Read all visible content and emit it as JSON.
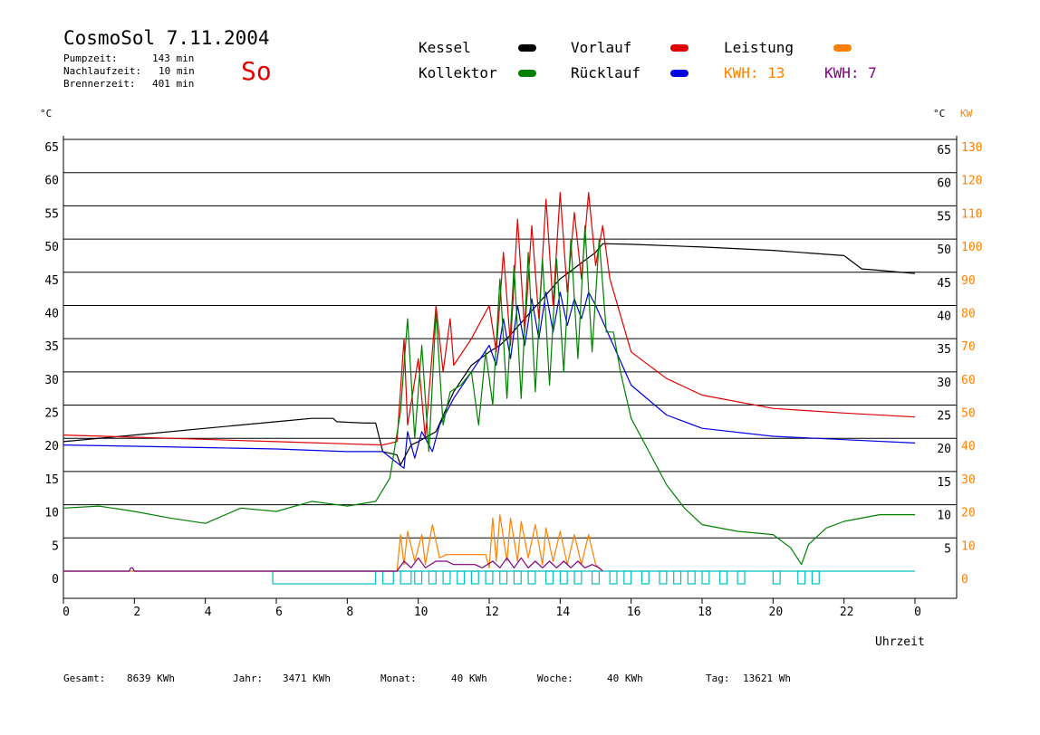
{
  "header": {
    "title": "CosmoSol 7.11.2004",
    "day": "So",
    "stats": [
      {
        "label": "Pumpzeit:",
        "value": "143 min"
      },
      {
        "label": "Nachlaufzeit:",
        "value": "10 min"
      },
      {
        "label": "Brennerzeit:",
        "value": "401 min"
      }
    ]
  },
  "legend": {
    "items": [
      {
        "label": "Kessel",
        "color": "#000000"
      },
      {
        "label": "Vorlauf",
        "color": "#e00000"
      },
      {
        "label": "Leistung",
        "color": "#ff8000"
      },
      {
        "label": "Kollektor",
        "color": "#008000"
      },
      {
        "label": "Rücklauf",
        "color": "#0000e0"
      }
    ],
    "kwh_orange": "KWH: 13",
    "kwh_purple": "KWH: 7"
  },
  "colors": {
    "kessel": "#000000",
    "vorlauf": "#e00000",
    "ruecklauf": "#0000e0",
    "kollektor": "#008000",
    "leistung": "#ff8000",
    "purple": "#800080",
    "pump": "#00c0c0",
    "kw_axis": "#ff8000"
  },
  "footer": [
    {
      "label": "Gesamt:",
      "value": "8639 KWh"
    },
    {
      "label": "Jahr:",
      "value": "3471 KWh"
    },
    {
      "label": "Monat:",
      "value": "40 KWh"
    },
    {
      "label": "Woche:",
      "value": "40 KWh"
    },
    {
      "label": "Tag:",
      "value": "13621 Wh"
    }
  ],
  "chart_data": {
    "type": "line",
    "xlabel": "Uhrzeit",
    "ylabel_left": "°C",
    "ylabel_right_temp": "°C",
    "ylabel_right_kw": "KW",
    "xlim": [
      0,
      24
    ],
    "ylim": [
      0,
      65
    ],
    "xticks": [
      "0",
      "2",
      "4",
      "6",
      "8",
      "10",
      "12",
      "14",
      "16",
      "18",
      "20",
      "22",
      "0"
    ],
    "yticks_left": [
      0,
      5,
      10,
      15,
      20,
      25,
      30,
      35,
      40,
      45,
      50,
      55,
      60,
      65
    ],
    "yticks_right_temp": [
      5,
      10,
      15,
      20,
      25,
      30,
      35,
      40,
      45,
      50,
      55,
      60,
      65
    ],
    "yticks_right_kw": [
      0,
      10,
      20,
      30,
      40,
      50,
      60,
      70,
      80,
      90,
      100,
      110,
      120,
      130
    ],
    "grid": true,
    "series": [
      {
        "name": "Kessel",
        "color": "#000000",
        "x": [
          0,
          2,
          4,
          6,
          7,
          7.6,
          7.7,
          8.5,
          8.8,
          9.0,
          9.4,
          9.5,
          9.8,
          10,
          10.5,
          11,
          11.5,
          12,
          12.3,
          12.5,
          13,
          13.5,
          14,
          14.5,
          15,
          15.2,
          16,
          18,
          20,
          22,
          22.5,
          23,
          24
        ],
        "y": [
          19.5,
          20.5,
          21.5,
          22.5,
          23.0,
          23.0,
          22.5,
          22.3,
          22.3,
          18.0,
          17.5,
          16.0,
          19.0,
          19.5,
          21,
          27,
          31,
          33,
          34,
          35,
          38,
          41,
          44,
          46,
          48,
          49.3,
          49.2,
          48.8,
          48.3,
          47.5,
          45.5,
          45.3,
          44.8
        ]
      },
      {
        "name": "Vorlauf",
        "color": "#e00000",
        "x": [
          0,
          3,
          6,
          9,
          9.4,
          9.6,
          9.7,
          10,
          10.2,
          10.5,
          10.7,
          10.9,
          11,
          11.5,
          12,
          12.2,
          12.4,
          12.6,
          12.8,
          13,
          13.2,
          13.4,
          13.6,
          13.8,
          14,
          14.2,
          14.4,
          14.6,
          14.8,
          15,
          15.2,
          15.4,
          16,
          17,
          18,
          20,
          22,
          24
        ],
        "y": [
          20.5,
          20,
          19.5,
          19,
          19.5,
          35,
          22,
          32,
          20,
          40,
          30,
          38,
          31,
          35,
          40,
          33,
          48,
          34,
          53,
          36,
          52,
          38,
          56,
          40,
          57,
          42,
          54,
          44,
          57,
          46,
          52,
          44,
          33,
          29,
          26.5,
          24.5,
          23.8,
          23.2
        ]
      },
      {
        "name": "Rücklauf",
        "color": "#0000e0",
        "x": [
          0,
          2,
          4,
          6,
          8,
          9.0,
          9.6,
          9.7,
          9.9,
          10.1,
          10.4,
          10.6,
          11,
          11.5,
          12,
          12.2,
          12.4,
          12.6,
          12.8,
          13,
          13.2,
          13.4,
          13.6,
          13.8,
          14,
          14.2,
          14.4,
          14.6,
          14.8,
          15,
          15.5,
          16,
          17,
          18,
          20,
          22,
          24
        ],
        "y": [
          19,
          18.8,
          18.6,
          18.4,
          18,
          18,
          15.5,
          21,
          17,
          21,
          18,
          22,
          26,
          30,
          34,
          31,
          38,
          32,
          40,
          34,
          41,
          35,
          42,
          36,
          42,
          37,
          41,
          38,
          42,
          40,
          34,
          28,
          23.5,
          21.5,
          20.3,
          19.8,
          19.3
        ]
      },
      {
        "name": "Kollektor",
        "color": "#008000",
        "x": [
          0,
          1,
          2,
          3,
          4,
          5,
          6,
          7,
          8,
          8.8,
          9.2,
          9.5,
          9.7,
          9.9,
          10.1,
          10.3,
          10.5,
          10.7,
          10.9,
          11.2,
          11.5,
          11.7,
          11.9,
          12.1,
          12.3,
          12.5,
          12.7,
          12.9,
          13.1,
          13.3,
          13.5,
          13.7,
          13.9,
          14.1,
          14.3,
          14.5,
          14.7,
          14.9,
          15.1,
          15.3,
          15.5,
          15.7,
          16,
          16.5,
          17,
          17.5,
          18,
          19,
          20,
          20.5,
          20.8,
          21,
          21.5,
          22,
          23,
          24
        ],
        "y": [
          9.5,
          9.8,
          9,
          8,
          7.2,
          9.5,
          9,
          10.5,
          9.8,
          10.5,
          14,
          24,
          38,
          20,
          34,
          18,
          39,
          22,
          27,
          28,
          30,
          22,
          33,
          25,
          44,
          26,
          46,
          26,
          48,
          27,
          47,
          28,
          47,
          30,
          50,
          32,
          52,
          33,
          50,
          36,
          36,
          30,
          23,
          18,
          13,
          9.5,
          7,
          6,
          5.5,
          3.5,
          1,
          4,
          6.5,
          7.5,
          8.5,
          8.5
        ]
      },
      {
        "name": "Leistung",
        "color": "#ff8000",
        "axis": "kw",
        "x": [
          0,
          9.4,
          9.5,
          9.6,
          9.7,
          9.9,
          10.1,
          10.2,
          10.4,
          10.6,
          10.8,
          11,
          11.5,
          11.9,
          12,
          12.1,
          12.2,
          12.3,
          12.5,
          12.6,
          12.8,
          12.9,
          13.1,
          13.3,
          13.5,
          13.6,
          13.8,
          14,
          14.2,
          14.4,
          14.6,
          14.8,
          15,
          15.2
        ],
        "y": [
          0,
          0,
          11,
          2,
          12,
          3,
          11,
          2,
          14,
          4,
          5,
          5,
          5,
          5,
          1,
          16,
          3,
          17,
          3,
          16,
          3,
          15,
          4,
          14,
          2,
          13,
          3,
          12,
          2,
          11,
          2,
          11,
          2,
          0
        ]
      },
      {
        "name": "KWH 7",
        "color": "#800080",
        "axis": "kw",
        "x": [
          0,
          1.85,
          1.9,
          1.95,
          2,
          9.4,
          9.6,
          9.8,
          10,
          10.2,
          10.5,
          10.8,
          11,
          11.6,
          11.8,
          12.1,
          12.3,
          12.5,
          12.7,
          12.9,
          13.1,
          13.3,
          13.5,
          13.7,
          13.9,
          14.1,
          14.3,
          14.5,
          14.7,
          14.9,
          15.1,
          15.2
        ],
        "y": [
          0,
          0,
          1,
          1,
          0,
          0,
          3,
          1,
          4,
          1,
          3,
          3,
          2,
          2,
          1,
          3,
          1,
          4,
          1,
          4,
          1,
          3,
          1,
          3,
          1,
          3,
          1,
          3,
          1,
          2,
          1,
          0
        ]
      }
    ],
    "pump_on_intervals": [
      [
        5.9,
        8.8
      ],
      [
        9.0,
        9.3
      ],
      [
        9.5,
        9.8
      ],
      [
        9.9,
        10.1
      ],
      [
        10.3,
        10.5
      ],
      [
        10.7,
        10.9
      ],
      [
        11.1,
        11.3
      ],
      [
        11.5,
        11.7
      ],
      [
        11.9,
        12.1
      ],
      [
        12.3,
        12.5
      ],
      [
        12.7,
        12.9
      ],
      [
        13.1,
        13.3
      ],
      [
        13.6,
        13.8
      ],
      [
        14.0,
        14.2
      ],
      [
        14.4,
        14.6
      ],
      [
        14.9,
        15.1
      ],
      [
        15.4,
        15.6
      ],
      [
        15.8,
        16.0
      ],
      [
        16.3,
        16.5
      ],
      [
        16.8,
        17.0
      ],
      [
        17.2,
        17.4
      ],
      [
        17.6,
        17.8
      ],
      [
        18.0,
        18.2
      ],
      [
        18.5,
        18.7
      ],
      [
        19.0,
        19.2
      ],
      [
        20.0,
        20.2
      ],
      [
        20.7,
        20.9
      ],
      [
        21.1,
        21.3
      ]
    ]
  }
}
